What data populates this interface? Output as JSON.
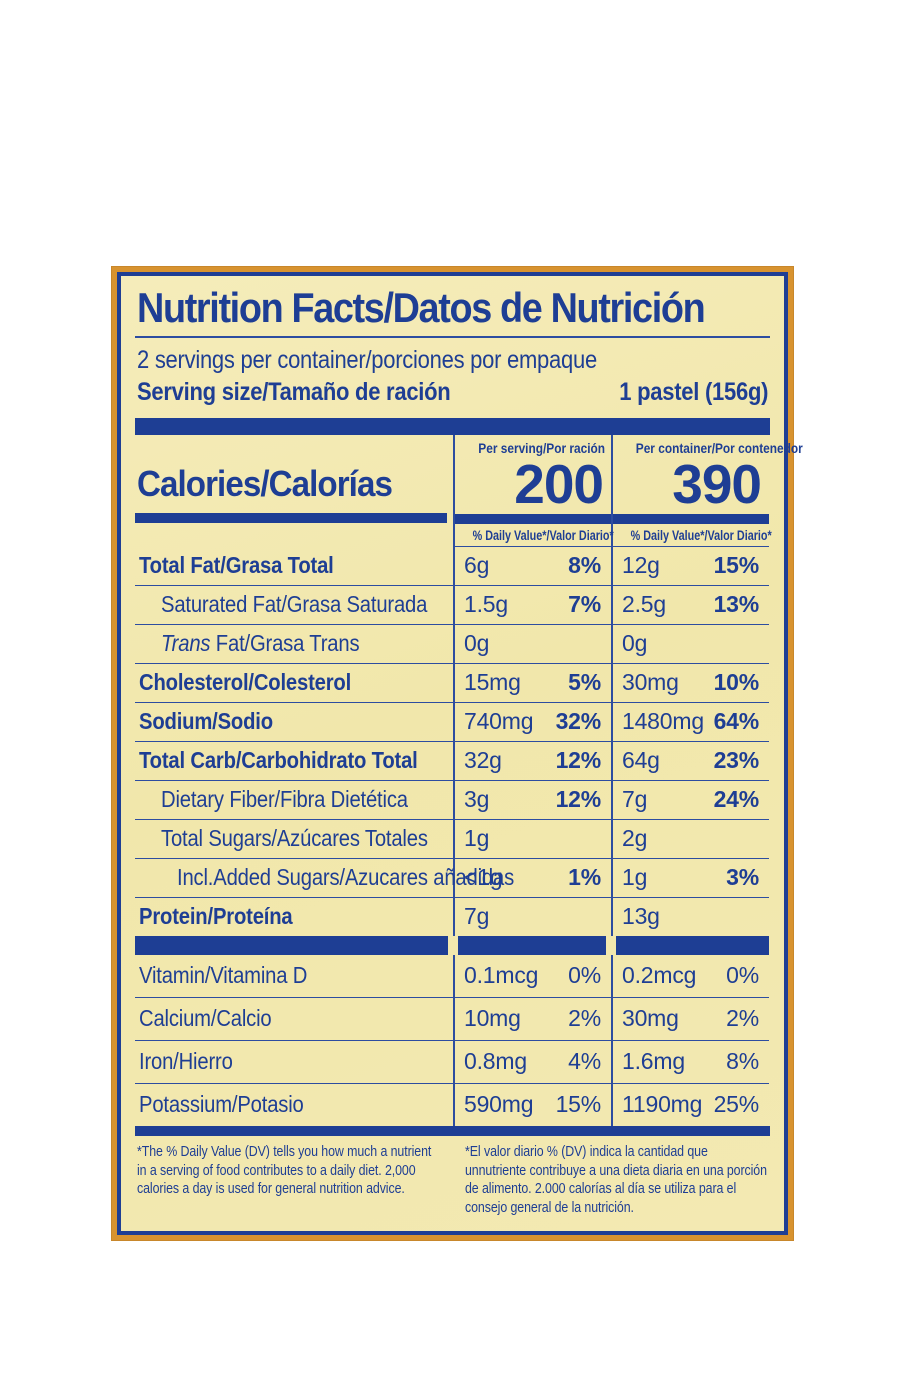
{
  "colors": {
    "navy": "#1e3e94",
    "cream": "#f2e8b0",
    "orange_border": "#d8932f",
    "hairline": "#2d4da0"
  },
  "label": {
    "title": "Nutrition Facts/Datos de Nutrición",
    "servings_line": "2 servings per container/porciones por empaque",
    "serving_size_label": "Serving size/Tamaño de ración",
    "serving_size_value": "1 pastel (156g)",
    "calories": {
      "label": "Calories/Calorías",
      "per_serving_header": "Per serving/Por ración",
      "per_serving_value": "200",
      "per_container_header": "Per container/Por contenedor",
      "per_container_value": "390",
      "dv_header": "% Daily Value*/Valor Diario*"
    },
    "rows": [
      {
        "name": "Total Fat/Grasa Total",
        "bold": true,
        "indent": 0,
        "amount1": "6g",
        "dv1": "8%",
        "amount2": "12g",
        "dv2": "15%"
      },
      {
        "name": "Saturated Fat/Grasa Saturada",
        "bold": false,
        "indent": 1,
        "amount1": "1.5g",
        "dv1": "7%",
        "amount2": "2.5g",
        "dv2": "13%"
      },
      {
        "name": "Fat/Grasa Trans",
        "italic_prefix": "Trans ",
        "bold": false,
        "indent": 1,
        "amount1": "0g",
        "dv1": "",
        "amount2": "0g",
        "dv2": ""
      },
      {
        "name": "Cholesterol/Colesterol",
        "bold": true,
        "indent": 0,
        "amount1": "15mg",
        "dv1": "5%",
        "amount2": "30mg",
        "dv2": "10%"
      },
      {
        "name": "Sodium/Sodio",
        "bold": true,
        "indent": 0,
        "amount1": "740mg",
        "dv1": "32%",
        "amount2": "1480mg",
        "dv2": "64%"
      },
      {
        "name": "Total Carb/Carbohidrato Total",
        "bold": true,
        "indent": 0,
        "amount1": "32g",
        "dv1": "12%",
        "amount2": "64g",
        "dv2": "23%"
      },
      {
        "name": "Dietary Fiber/Fibra Dietética",
        "bold": false,
        "indent": 1,
        "amount1": "3g",
        "dv1": "12%",
        "amount2": "7g",
        "dv2": "24%"
      },
      {
        "name": "Total Sugars/Azúcares Totales",
        "bold": false,
        "indent": 1,
        "amount1": "1g",
        "dv1": "",
        "amount2": "2g",
        "dv2": ""
      },
      {
        "name": "Incl.Added Sugars/Azucares añadidas",
        "bold": false,
        "indent": 2,
        "amount1": "<1g",
        "dv1": "1%",
        "amount2": "1g",
        "dv2": "3%"
      },
      {
        "name": "Protein/Proteína",
        "bold": true,
        "indent": 0,
        "amount1": "7g",
        "dv1": "",
        "amount2": "13g",
        "dv2": ""
      }
    ],
    "vitamins": [
      {
        "name": "Vitamin/Vitamina D",
        "amount1": "0.1mcg",
        "dv1": "0%",
        "amount2": "0.2mcg",
        "dv2": "0%"
      },
      {
        "name": "Calcium/Calcio",
        "amount1": "10mg",
        "dv1": "2%",
        "amount2": "30mg",
        "dv2": "2%"
      },
      {
        "name": "Iron/Hierro",
        "amount1": "0.8mg",
        "dv1": "4%",
        "amount2": "1.6mg",
        "dv2": "8%"
      },
      {
        "name": "Potassium/Potasio",
        "amount1": "590mg",
        "dv1": "15%",
        "amount2": "1190mg",
        "dv2": "25%"
      }
    ],
    "footnote_en": "*The % Daily Value (DV) tells you how much a nutrient in a serving of food contributes to a daily diet. 2,000 calories a day is used for general nutrition advice.",
    "footnote_es": "*El valor diario % (DV) indica la cantidad que unnutriente contribuye a una dieta diaria en una porción de alimento. 2.000 calorías al día se utiliza para el consejo general de la nutrición."
  }
}
